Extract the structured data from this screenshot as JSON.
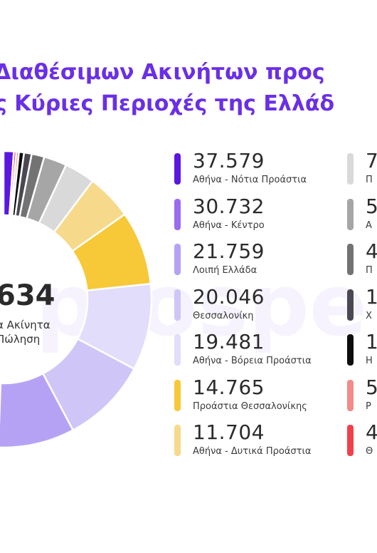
{
  "title": {
    "line1": "Διαθέσιμων Ακινήτων προς",
    "line2": "ς Κύριες Περιοχές της Ελλάδ"
  },
  "watermark": "prospe",
  "center": {
    "value": "634",
    "label_line1": "α Ακίνητα",
    "label_line2": "Πώληση"
  },
  "legend": {
    "items": [
      {
        "value": "37.579",
        "label": "Αθήνα - Νότια Προάστια",
        "color": "#5b17e0"
      },
      {
        "value": "30.732",
        "label": "Αθήνα - Κέντρο",
        "color": "#9a6cf0"
      },
      {
        "value": "21.759",
        "label": "Λοιπή Ελλάδα",
        "color": "#b6a2f5"
      },
      {
        "value": "20.046",
        "label": "Θεσσαλονίκη",
        "color": "#cfc6f7"
      },
      {
        "value": "19.481",
        "label": "Αθήνα - Βόρεια Προάστια",
        "color": "#e2ddfa"
      },
      {
        "value": "14.765",
        "label": "Προάστια Θεσσαλονίκης",
        "color": "#f7c837"
      },
      {
        "value": "11.704",
        "label": "Αθήνα - Δυτικά Προάστια",
        "color": "#f6d98a"
      },
      {
        "value": "7",
        "label": "Π",
        "color": "#d9d9d9"
      },
      {
        "value": "5",
        "label": "Α",
        "color": "#a6a6a6"
      },
      {
        "value": "4",
        "label": "Π",
        "color": "#737373"
      },
      {
        "value": "1.",
        "label": "Χ",
        "color": "#4a4852"
      },
      {
        "value": "1.",
        "label": "Η",
        "color": "#0d0d0d"
      },
      {
        "value": "5",
        "label": "Ρ",
        "color": "#f48a8a"
      },
      {
        "value": "4",
        "label": "Θ",
        "color": "#f0414b"
      }
    ]
  },
  "chart_data": {
    "type": "pie",
    "categories": [
      "Αθήνα - Νότια Προάστια",
      "Αθήνα - Κέντρο",
      "Λοιπή Ελλάδα",
      "Θεσσαλονίκη",
      "Αθήνα - Βόρεια Προάστια",
      "Προάστια Θεσσαλονίκης",
      "Αθήνα - Δυτικά Προάστια"
    ],
    "values": [
      37579,
      30732,
      21759,
      20046,
      19481,
      14765,
      11704
    ],
    "colors": [
      "#5b17e0",
      "#9a6cf0",
      "#b6a2f5",
      "#cfc6f7",
      "#e2ddfa",
      "#f7c837",
      "#f6d98a"
    ],
    "donut": true
  }
}
